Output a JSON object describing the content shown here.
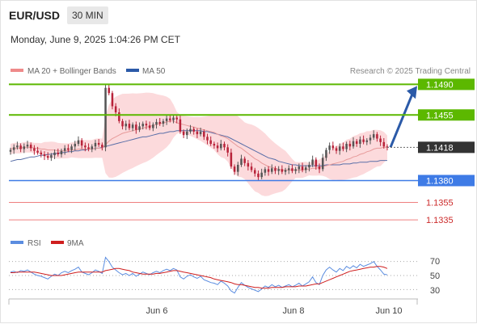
{
  "header": {
    "symbol": "EUR/USD",
    "timeframe": "30 MIN",
    "timestamp": "Monday, June 9, 2025 1:04:26 PM CET"
  },
  "colors": {
    "resistance": "#5cb800",
    "support_blue": "#3e7be6",
    "support_red": "#ef7f7f",
    "current_price_bg": "#333333",
    "candle_up": "#555555",
    "candle_down": "#b8233a",
    "bollinger_fill": "#fbd3d6",
    "ma20": "#e79a9a",
    "ma50": "#5a6fa8",
    "rsi": "#5b8de0",
    "rsi_ma": "#cf1f1f",
    "arrow": "#2b5aa8"
  },
  "chart_data": [
    {
      "type": "candlestick",
      "legend": [
        {
          "name": "MA 20 + Bollinger Bands",
          "color": "#ef8a8a"
        },
        {
          "name": "MA 50",
          "color": "#2b5aa8"
        }
      ],
      "copyright": "Research © 2025 Trading Central",
      "ylim": [
        1.1325,
        1.1495
      ],
      "x_ticks": [
        "Jun 6",
        "Jun 8",
        "Jun 10"
      ],
      "last_price": 1.1418,
      "levels": [
        {
          "value": 1.149,
          "label": "1.1490",
          "kind": "resistance"
        },
        {
          "value": 1.1455,
          "label": "1.1455",
          "kind": "resistance"
        },
        {
          "value": 1.1418,
          "label": "1.1418",
          "kind": "current"
        },
        {
          "value": 1.138,
          "label": "1.1380",
          "kind": "support"
        },
        {
          "value": 1.1355,
          "label": "1.1355",
          "kind": "support-minor"
        },
        {
          "value": 1.1335,
          "label": "1.1335",
          "kind": "support-minor"
        }
      ],
      "target": 1.149,
      "close": [
        1.1415,
        1.1418,
        1.142,
        1.1416,
        1.1419,
        1.1421,
        1.1417,
        1.1414,
        1.1412,
        1.141,
        1.1408,
        1.1406,
        1.1409,
        1.1412,
        1.141,
        1.1414,
        1.1417,
        1.1415,
        1.1419,
        1.1422,
        1.1426,
        1.142,
        1.1418,
        1.1416,
        1.1419,
        1.1423,
        1.1421,
        1.1418,
        1.1486,
        1.148,
        1.1465,
        1.1458,
        1.1448,
        1.1442,
        1.1445,
        1.144,
        1.1444,
        1.1438,
        1.1442,
        1.1445,
        1.1443,
        1.144,
        1.1444,
        1.1447,
        1.1445,
        1.1448,
        1.1451,
        1.1449,
        1.1452,
        1.145,
        1.1436,
        1.1432,
        1.1436,
        1.1439,
        1.1436,
        1.1433,
        1.1436,
        1.143,
        1.1426,
        1.1422,
        1.142,
        1.1417,
        1.1422,
        1.1418,
        1.1412,
        1.1396,
        1.139,
        1.1398,
        1.1405,
        1.14,
        1.1396,
        1.1392,
        1.1388,
        1.1384,
        1.1389,
        1.1393,
        1.139,
        1.1394,
        1.1391,
        1.1393,
        1.139,
        1.1392,
        1.1394,
        1.1391,
        1.1393,
        1.1396,
        1.1392,
        1.1395,
        1.1398,
        1.1404,
        1.1396,
        1.1393,
        1.1406,
        1.1415,
        1.142,
        1.1417,
        1.1414,
        1.1419,
        1.1416,
        1.1422,
        1.1419,
        1.1425,
        1.1422,
        1.1427,
        1.1424,
        1.1426,
        1.1429,
        1.1433,
        1.1428,
        1.1424,
        1.1419,
        1.1418
      ],
      "ma20": [
        1.1416,
        1.1417,
        1.1417,
        1.1417,
        1.1418,
        1.1418,
        1.1418,
        1.1417,
        1.1417,
        1.1416,
        1.1416,
        1.1415,
        1.1415,
        1.1415,
        1.1414,
        1.1414,
        1.1414,
        1.1414,
        1.1415,
        1.1415,
        1.1416,
        1.1416,
        1.1416,
        1.1416,
        1.1416,
        1.1417,
        1.1417,
        1.1417,
        1.1421,
        1.1425,
        1.1428,
        1.143,
        1.1432,
        1.1434,
        1.1435,
        1.1436,
        1.1437,
        1.1438,
        1.1439,
        1.144,
        1.1441,
        1.1442,
        1.1443,
        1.1444,
        1.1445,
        1.1446,
        1.1447,
        1.1448,
        1.1448,
        1.1446,
        1.1445,
        1.1444,
        1.1443,
        1.1442,
        1.1441,
        1.144,
        1.1439,
        1.1438,
        1.1437,
        1.1436,
        1.1435,
        1.1433,
        1.1431,
        1.143,
        1.1428,
        1.1425,
        1.1422,
        1.1419,
        1.1417,
        1.1414,
        1.1411,
        1.1408,
        1.1405,
        1.1403,
        1.14,
        1.1398,
        1.1396,
        1.1395,
        1.1394,
        1.1393,
        1.1392,
        1.1392,
        1.1392,
        1.1392,
        1.1392,
        1.1392,
        1.1392,
        1.1393,
        1.1393,
        1.1394,
        1.1394,
        1.1395,
        1.1396,
        1.1397,
        1.1398,
        1.1399,
        1.14,
        1.1401,
        1.1402,
        1.1404,
        1.1405,
        1.1407,
        1.1408,
        1.141,
        1.1411,
        1.1413,
        1.1414,
        1.1416,
        1.1417,
        1.1417,
        1.1418,
        1.1418
      ],
      "ma50": [
        1.1402,
        1.1403,
        1.1404,
        1.1404,
        1.1405,
        1.1406,
        1.1407,
        1.1407,
        1.1408,
        1.1409,
        1.1409,
        1.141,
        1.141,
        1.1411,
        1.1411,
        1.1412,
        1.1412,
        1.1413,
        1.1413,
        1.1414,
        1.1414,
        1.1415,
        1.1415,
        1.1416,
        1.1416,
        1.1417,
        1.1417,
        1.1418,
        1.1419,
        1.142,
        1.1421,
        1.1422,
        1.1423,
        1.1424,
        1.1425,
        1.1426,
        1.1427,
        1.1428,
        1.1429,
        1.143,
        1.143,
        1.1431,
        1.1432,
        1.1433,
        1.1434,
        1.1434,
        1.1435,
        1.1436,
        1.1436,
        1.1437,
        1.1437,
        1.1437,
        1.1437,
        1.1437,
        1.1437,
        1.1437,
        1.1437,
        1.1436,
        1.1436,
        1.1435,
        1.1434,
        1.1433,
        1.1432,
        1.1431,
        1.143,
        1.1428,
        1.1426,
        1.1424,
        1.1422,
        1.142,
        1.1418,
        1.1416,
        1.1414,
        1.1412,
        1.141,
        1.1408,
        1.1406,
        1.1405,
        1.1404,
        1.1402,
        1.1401,
        1.14,
        1.1399,
        1.1398,
        1.1398,
        1.1397,
        1.1397,
        1.1397,
        1.1397,
        1.1397,
        1.1397,
        1.1397,
        1.1397,
        1.1398,
        1.1398,
        1.1398,
        1.1398,
        1.1398,
        1.1399,
        1.1399,
        1.1399,
        1.14,
        1.14,
        1.1401,
        1.1401,
        1.1401,
        1.1402,
        1.1402,
        1.1402,
        1.1403,
        1.1403,
        1.1403
      ]
    },
    {
      "type": "line",
      "legend": [
        {
          "name": "RSI",
          "color": "#5b8de0"
        },
        {
          "name": "9MA",
          "color": "#cf1f1f"
        }
      ],
      "ylim": [
        20,
        80
      ],
      "y_ticks": [
        70,
        50,
        30
      ],
      "series": [
        {
          "name": "RSI",
          "values": [
            55,
            56,
            54,
            57,
            56,
            58,
            55,
            52,
            50,
            49,
            47,
            45,
            49,
            52,
            50,
            54,
            56,
            54,
            57,
            59,
            62,
            55,
            53,
            51,
            54,
            58,
            56,
            53,
            76,
            70,
            62,
            58,
            54,
            51,
            53,
            50,
            53,
            49,
            52,
            55,
            53,
            51,
            54,
            56,
            54,
            57,
            59,
            57,
            60,
            58,
            48,
            45,
            49,
            51,
            48,
            46,
            49,
            44,
            42,
            40,
            39,
            37,
            42,
            39,
            35,
            28,
            25,
            33,
            40,
            36,
            33,
            31,
            29,
            27,
            31,
            35,
            33,
            37,
            34,
            36,
            33,
            35,
            37,
            34,
            36,
            39,
            35,
            38,
            41,
            48,
            40,
            37,
            50,
            58,
            62,
            58,
            55,
            60,
            57,
            63,
            60,
            64,
            61,
            66,
            63,
            65,
            67,
            70,
            63,
            58,
            52,
            51
          ]
        },
        {
          "name": "9MA",
          "values": [
            54,
            54,
            55,
            55,
            55,
            55,
            55,
            55,
            54,
            53,
            52,
            51,
            50,
            50,
            50,
            50,
            51,
            52,
            53,
            54,
            55,
            55,
            55,
            55,
            55,
            55,
            55,
            55,
            57,
            58,
            59,
            60,
            60,
            59,
            58,
            57,
            55,
            54,
            53,
            52,
            52,
            52,
            52,
            53,
            53,
            54,
            55,
            56,
            57,
            57,
            56,
            55,
            54,
            53,
            52,
            51,
            50,
            49,
            48,
            47,
            45,
            44,
            43,
            42,
            41,
            40,
            38,
            37,
            37,
            36,
            35,
            34,
            33,
            33,
            32,
            32,
            32,
            33,
            33,
            33,
            33,
            34,
            34,
            34,
            34,
            35,
            35,
            35,
            36,
            37,
            38,
            38,
            40,
            42,
            44,
            46,
            48,
            50,
            52,
            54,
            56,
            57,
            58,
            59,
            60,
            61,
            62,
            62,
            63,
            63,
            62,
            60
          ]
        }
      ]
    }
  ]
}
